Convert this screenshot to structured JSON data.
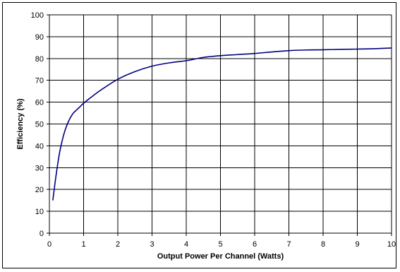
{
  "chart_data": {
    "type": "line",
    "title": "",
    "xlabel": "Output Power Per Channel (Watts)",
    "ylabel": "Efficiency (%)",
    "xlim": [
      0,
      10
    ],
    "ylim": [
      0,
      100
    ],
    "x_ticks": [
      0,
      1,
      2,
      3,
      4,
      5,
      6,
      7,
      8,
      9,
      10
    ],
    "y_ticks": [
      0,
      10,
      20,
      30,
      40,
      50,
      60,
      70,
      80,
      90,
      100
    ],
    "grid": true,
    "legend": "none",
    "series": [
      {
        "color": "#000080",
        "x": [
          0.1,
          0.2,
          0.3,
          0.4,
          0.5,
          0.6,
          0.7,
          0.8,
          0.9,
          1.0,
          1.2,
          1.5,
          2.0,
          2.5,
          3.0,
          3.5,
          4.0,
          4.5,
          5.0,
          5.5,
          6.0,
          6.5,
          7.0,
          7.5,
          8.0,
          8.5,
          9.0,
          9.5,
          10.0
        ],
        "y": [
          15,
          27,
          37,
          44,
          49,
          52.5,
          55,
          56.5,
          58,
          59.5,
          62,
          65.5,
          70.5,
          74,
          76.5,
          78,
          79,
          80.5,
          81.3,
          81.8,
          82.3,
          83,
          83.6,
          83.9,
          84,
          84.2,
          84.3,
          84.5,
          84.8
        ]
      }
    ]
  }
}
